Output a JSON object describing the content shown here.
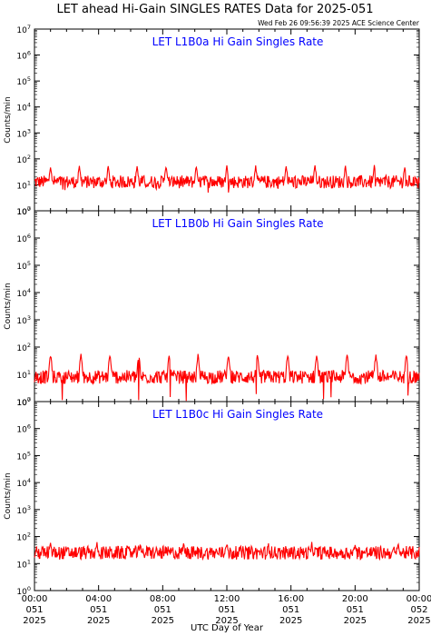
{
  "header": {
    "title": "LET ahead Hi-Gain SINGLES RATES Data for 2025-051",
    "timestamp": "Wed Feb 26 09:56:39 2025 ACE Science Center"
  },
  "colors": {
    "trace": "#ff0000",
    "panel_title": "#0000ff",
    "axes": "#000000"
  },
  "chart_data": [
    {
      "type": "line",
      "title": "LET L1B0a Hi Gain Singles Rate",
      "ylabel": "Counts/min",
      "yscale": "log",
      "ylim": [
        1,
        10000000
      ],
      "xlim": [
        0,
        24
      ],
      "baseline": 13,
      "spike_amplitude": 50,
      "spike_hours": [
        1.0,
        2.8,
        4.6,
        6.4,
        8.2,
        10.1,
        12.0,
        13.8,
        15.7,
        17.5,
        19.4,
        21.2,
        23.1
      ],
      "min_dip": 5,
      "series": [
        {
          "values_described_as": "noisy rate around 10–20 counts/min with periodic peaks near 50"
        }
      ]
    },
    {
      "type": "line",
      "title": "LET L1B0b Hi Gain Singles Rate",
      "ylabel": "Counts/min",
      "yscale": "log",
      "ylim": [
        1,
        10000000
      ],
      "xlim": [
        0,
        24
      ],
      "baseline": 8,
      "spike_amplitude": 50,
      "spike_hours": [
        1.0,
        2.9,
        4.7,
        6.5,
        8.4,
        10.2,
        12.1,
        13.9,
        15.8,
        17.6,
        19.5,
        21.3,
        23.2
      ],
      "min_dip": 1,
      "series": [
        {
          "values_described_as": "noisy rate around 5–15 counts/min with periodic peaks near 50"
        }
      ]
    },
    {
      "type": "line",
      "title": "LET L1B0c Hi Gain Singles Rate",
      "ylabel": "Counts/min",
      "yscale": "log",
      "ylim": [
        1,
        10000000
      ],
      "xlim": [
        0,
        24
      ],
      "baseline": 25,
      "spike_amplitude": 55,
      "spike_hours": [
        1.0,
        3.9,
        6.6,
        9.3,
        12.0,
        14.6,
        17.3,
        20.0,
        22.7
      ],
      "min_dip": 15,
      "series": [
        {
          "values_described_as": "noisy rate around 20–35 counts/min with small peaks near 55"
        }
      ]
    }
  ],
  "x_axis": {
    "label": "UTC Day of Year",
    "ticks": [
      {
        "hour": 0,
        "time": "00:00",
        "doy": "051",
        "year": "2025"
      },
      {
        "hour": 4,
        "time": "04:00",
        "doy": "051",
        "year": "2025"
      },
      {
        "hour": 8,
        "time": "08:00",
        "doy": "051",
        "year": "2025"
      },
      {
        "hour": 12,
        "time": "12:00",
        "doy": "051",
        "year": "2025"
      },
      {
        "hour": 16,
        "time": "16:00",
        "doy": "051",
        "year": "2025"
      },
      {
        "hour": 20,
        "time": "20:00",
        "doy": "051",
        "year": "2025"
      },
      {
        "hour": 24,
        "time": "00:00",
        "doy": "052",
        "year": "2025"
      }
    ]
  },
  "y_ticks": [
    "0",
    "1",
    "2",
    "3",
    "4",
    "5",
    "6",
    "7"
  ]
}
